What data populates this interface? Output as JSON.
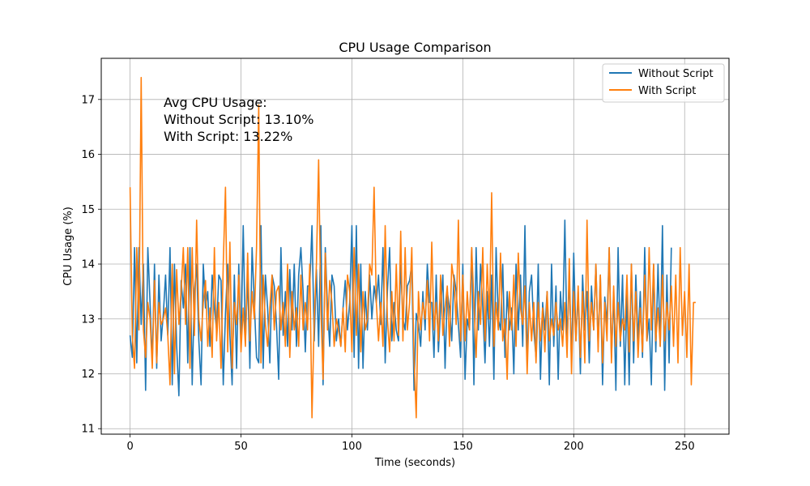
{
  "chart_data": {
    "type": "line",
    "title": "CPU Usage Comparison",
    "xlabel": "Time (seconds)",
    "ylabel": "CPU Usage (%)",
    "xlim": [
      -13,
      270
    ],
    "ylim": [
      10.9,
      17.75
    ],
    "xticks": [
      0,
      50,
      100,
      150,
      200,
      250
    ],
    "yticks": [
      11,
      12,
      13,
      14,
      15,
      16,
      17
    ],
    "grid": true,
    "legend_position": "top-right",
    "annotation_lines": [
      "Avg CPU Usage:",
      "Without Script: 13.10%",
      "With Script: 13.22%"
    ],
    "series": [
      {
        "name": "Without Script",
        "color": "#1f77b4",
        "x_start": 0,
        "x_step": 1,
        "values": [
          12.7,
          12.3,
          14.3,
          12.2,
          14.3,
          12.9,
          14.0,
          11.7,
          14.3,
          13.3,
          12.2,
          14.0,
          12.1,
          13.8,
          12.6,
          13.1,
          13.8,
          12.7,
          14.3,
          11.8,
          14.0,
          12.5,
          11.6,
          13.7,
          13.2,
          14.0,
          12.2,
          14.3,
          11.8,
          13.5,
          14.0,
          12.6,
          11.8,
          14.0,
          13.2,
          13.5,
          12.5,
          13.8,
          13.2,
          12.8,
          13.8,
          13.7,
          11.8,
          13.1,
          14.0,
          12.7,
          11.8,
          13.8,
          12.1,
          14.0,
          12.5,
          14.7,
          12.6,
          13.8,
          12.1,
          14.3,
          13.3,
          12.3,
          12.2,
          14.7,
          12.1,
          13.8,
          13.2,
          12.2,
          13.8,
          13.6,
          12.9,
          11.9,
          14.3,
          12.7,
          13.5,
          12.5,
          13.9,
          12.8,
          14.0,
          12.5,
          13.8,
          14.3,
          13.5,
          12.4,
          13.6,
          13.6,
          14.7,
          12.6,
          13.9,
          12.5,
          14.7,
          11.8,
          14.3,
          13.2,
          12.5,
          13.8,
          13.6,
          12.6,
          13.0,
          12.5,
          13.2,
          13.7,
          12.8,
          13.3,
          14.7,
          12.3,
          14.7,
          12.1,
          14.0,
          12.1,
          13.5,
          12.8,
          13.8,
          13.0,
          13.6,
          13.3,
          13.8,
          12.9,
          14.3,
          12.2,
          13.5,
          14.3,
          12.6,
          13.3,
          12.8,
          12.6,
          14.0,
          13.0,
          12.8,
          13.6,
          13.7,
          14.0,
          11.7,
          13.1,
          12.9,
          12.5,
          13.5,
          12.8,
          14.0,
          13.3,
          13.3,
          12.3,
          13.8,
          12.4,
          13.2,
          13.8,
          12.1,
          13.5,
          13.2,
          12.6,
          13.8,
          13.5,
          12.9,
          12.3,
          14.0,
          11.9,
          13.0,
          12.8,
          14.3,
          11.8,
          14.3,
          12.8,
          14.0,
          13.2,
          12.2,
          13.5,
          12.5,
          13.8,
          11.9,
          14.3,
          13.0,
          12.8,
          14.0,
          12.3,
          13.5,
          12.8,
          13.2,
          12.0,
          14.0,
          12.8,
          13.8,
          12.5,
          14.7,
          12.2,
          13.5,
          13.8,
          12.8,
          12.3,
          14.0,
          11.9,
          13.3,
          12.8,
          13.5,
          11.8,
          14.0,
          12.5,
          13.6,
          11.9,
          13.5,
          12.8,
          14.8,
          12.5,
          13.8,
          12.2,
          14.2,
          12.6,
          13.5,
          12.0,
          13.8,
          12.8,
          13.5,
          12.2,
          13.6,
          12.8,
          14.0,
          12.5,
          13.8,
          11.8,
          13.4,
          12.9,
          14.3,
          12.3,
          13.5,
          11.7,
          14.3,
          12.5,
          13.8,
          11.8,
          13.5,
          11.8,
          14.0,
          12.2,
          13.8,
          12.6,
          13.5,
          12.3,
          14.3,
          12.6,
          13.0,
          11.8,
          14.0,
          12.4,
          14.0,
          12.5,
          14.7,
          11.7,
          13.8,
          12.2,
          14.3
        ]
      },
      {
        "name": "With Script",
        "color": "#ff7f0e",
        "x_start": 0,
        "x_step": 1,
        "values": [
          15.4,
          12.7,
          12.1,
          14.3,
          12.8,
          17.4,
          12.8,
          12.3,
          13.3,
          13.0,
          12.1,
          13.7,
          12.2,
          13.3,
          12.9,
          13.0,
          13.2,
          12.7,
          11.8,
          14.0,
          12.0,
          13.9,
          12.9,
          13.5,
          14.3,
          12.9,
          14.3,
          12.1,
          14.3,
          12.7,
          14.8,
          13.0,
          12.6,
          13.3,
          13.7,
          12.5,
          13.2,
          12.3,
          14.3,
          12.6,
          13.3,
          12.1,
          14.0,
          15.4,
          12.4,
          14.4,
          12.1,
          13.3,
          12.9,
          13.8,
          12.4,
          13.2,
          12.5,
          14.2,
          12.6,
          13.5,
          13.0,
          14.3,
          16.9,
          12.2,
          13.8,
          12.9,
          12.5,
          13.2,
          13.8,
          12.8,
          13.5,
          13.6,
          12.8,
          13.3,
          12.5,
          14.0,
          12.3,
          13.5,
          12.8,
          13.2,
          12.5,
          13.8,
          12.8,
          13.3,
          12.8,
          14.0,
          11.2,
          13.0,
          14.0,
          15.9,
          13.2,
          11.9,
          14.2,
          12.8,
          13.7,
          13.3,
          12.5,
          13.0,
          12.8,
          12.5,
          13.2,
          12.4,
          13.8,
          13.5,
          12.4,
          14.3,
          12.7,
          14.0,
          12.4,
          13.5,
          12.8,
          13.0,
          14.0,
          13.8,
          15.4,
          13.3,
          12.6,
          13.3,
          12.5,
          14.7,
          13.0,
          12.4,
          13.5,
          12.6,
          14.0,
          12.7,
          14.6,
          12.6,
          14.3,
          12.8,
          13.3,
          14.3,
          12.3,
          11.2,
          13.5,
          12.8,
          13.3,
          13.0,
          13.7,
          12.6,
          14.4,
          12.8,
          13.3,
          12.6,
          13.8,
          12.7,
          13.2,
          13.6,
          12.5,
          14.0,
          13.7,
          12.9,
          14.8,
          12.6,
          13.8,
          12.6,
          13.5,
          12.8,
          14.3,
          13.3,
          12.3,
          13.5,
          12.9,
          14.3,
          12.6,
          14.0,
          13.0,
          15.3,
          12.5,
          13.3,
          12.8,
          14.2,
          12.6,
          13.0,
          11.9,
          13.5,
          12.8,
          13.8,
          12.5,
          14.2,
          13.2,
          12.9,
          13.6,
          12.0,
          13.3,
          12.6,
          13.3,
          12.2,
          13.3,
          12.6,
          13.2,
          12.4,
          13.5,
          12.6,
          13.0,
          12.7,
          13.3,
          12.8,
          13.0,
          12.5,
          13.3,
          12.3,
          14.1,
          12.0,
          13.5,
          12.6,
          13.6,
          12.3,
          13.5,
          12.2,
          14.8,
          12.6,
          13.3,
          12.8,
          14.0,
          12.4,
          13.8,
          12.2,
          13.3,
          12.6,
          14.3,
          12.2,
          13.6,
          12.5,
          13.3,
          12.6,
          13.0,
          12.8,
          13.8,
          12.4,
          14.0,
          12.6,
          13.5,
          12.3,
          13.2,
          12.4,
          13.8,
          12.6,
          14.3,
          12.8,
          14.0,
          12.6,
          13.2,
          12.5,
          13.8,
          12.6,
          13.3,
          12.8,
          13.6,
          12.5,
          13.8,
          12.2,
          14.3,
          12.7,
          13.5,
          12.3,
          14.0,
          11.8,
          13.3,
          13.3
        ]
      }
    ]
  }
}
